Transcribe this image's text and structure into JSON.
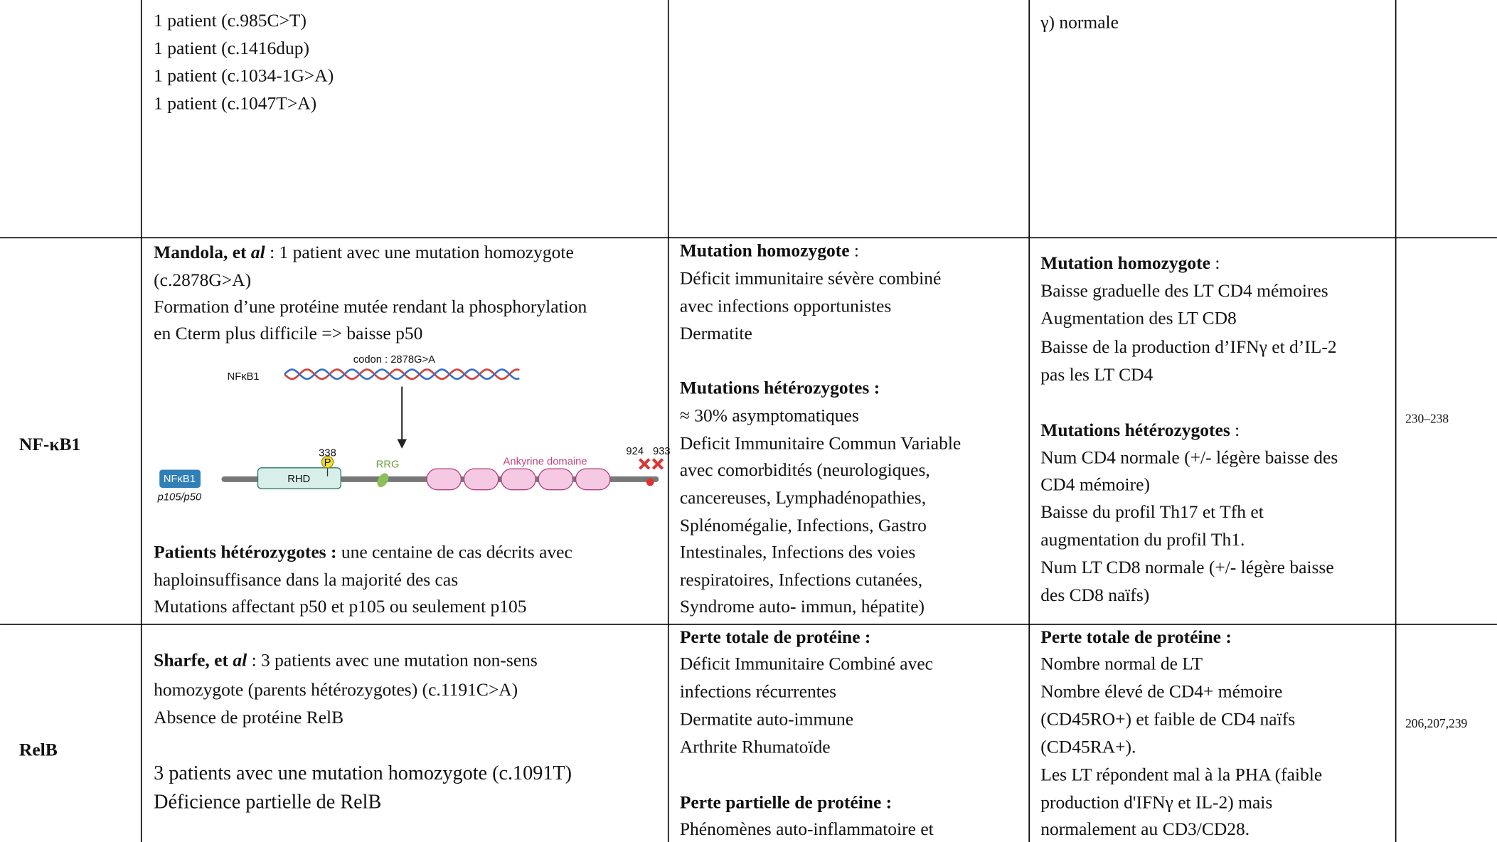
{
  "table": {
    "rows": [
      {
        "c1": [
          {
            "text": "1 patient (c.985C>T)"
          },
          {
            "text": "1 patient (c.1416dup)"
          },
          {
            "text": "1 patient (c.1034-1G>A)"
          },
          {
            "text": "1 patient (c.1047T>A)"
          }
        ],
        "c3": [
          {
            "text": "γ) normale"
          }
        ]
      },
      {
        "gene": "NF-κB1",
        "c1": [
          {
            "bold": "Mandola, et ",
            "bold_italic": "al",
            "text": " : 1 patient avec une mutation homozygote"
          },
          {
            "text": "(c.2878G>A)"
          },
          {
            "text": "Formation d’une protéine mutée rendant la phosphorylation"
          },
          {
            "text": "en Cterm plus difficile => baisse p50"
          },
          {
            "bold": "Patients hétérozygotes :",
            "text": " une centaine de cas décrits avec"
          },
          {
            "text": "haploinsuffisance dans la majorité des cas"
          },
          {
            "text": "Mutations affectant p50 et p105 ou seulement p105"
          }
        ],
        "c2": [
          {
            "bold": "Mutation homozygote",
            "text": " :"
          },
          {
            "text": "Déficit immunitaire sévère combiné"
          },
          {
            "text": "avec infections opportunistes"
          },
          {
            "text": "Dermatite"
          },
          {
            "bold": "Mutations hétérozygotes :"
          },
          {
            "text": "≈ 30% asymptomatiques"
          },
          {
            "text": "Deficit Immunitaire Commun Variable"
          },
          {
            "text": "avec comorbidités (neurologiques,"
          },
          {
            "text": "cancereuses, Lymphadénopathies,"
          },
          {
            "text": "Splénomégalie, Infections, Gastro"
          },
          {
            "text": "Intestinales, Infections des voies"
          },
          {
            "text": "respiratoires, Infections cutanées,"
          },
          {
            "text": "Syndrome auto- immun, hépatite)"
          }
        ],
        "c3": [
          {
            "bold": "Mutation homozygote",
            "text": " :"
          },
          {
            "text": "Baisse graduelle des LT CD4 mémoires"
          },
          {
            "text": "Augmentation des LT CD8"
          },
          {
            "text": "Baisse de la production d’IFNγ et d’IL-2"
          },
          {
            "text": "pas les LT CD4"
          },
          {
            "bold": "Mutations hétérozygotes",
            "text": " :"
          },
          {
            "text": "Num CD4 normale (+/- légère baisse des"
          },
          {
            "text": "CD4 mémoire)"
          },
          {
            "text": "Baisse du profil Th17 et Tfh et"
          },
          {
            "text": "augmentation du profil Th1."
          },
          {
            "text": "Num LT CD8 normale (+/- légère baisse"
          },
          {
            "text": "des CD8 naïfs)"
          }
        ],
        "refs": "230–238"
      },
      {
        "gene": "RelB",
        "c1": [
          {
            "bold": "Sharfe, et ",
            "bold_italic": "al",
            "text": " : 3 patients avec une mutation non-sens"
          },
          {
            "text": "homozygote (parents hétérozygotes) (c.1191C>A)"
          },
          {
            "text": "Absence de protéine RelB"
          },
          {
            "text": "3 patients avec une mutation homozygote (c.1091T)"
          },
          {
            "text": "Déficience partielle de RelB"
          }
        ],
        "c2": [
          {
            "bold": "Perte totale de protéine :"
          },
          {
            "text": "Déficit Immunitaire Combiné avec"
          },
          {
            "text": "infections récurrentes"
          },
          {
            "text": "Dermatite auto-immune"
          },
          {
            "text": "Arthrite Rhumatoïde"
          },
          {
            "bold": "Perte partielle de protéine :"
          },
          {
            "text": "Phénomènes auto-inflammatoire et"
          }
        ],
        "c3": [
          {
            "bold": "Perte totale de protéine :"
          },
          {
            "text": "Nombre normal de LT"
          },
          {
            "text": "Nombre élevé de CD4+ mémoire"
          },
          {
            "text": "(CD45RO+) et faible de CD4 naïfs"
          },
          {
            "text": "(CD45RA+)."
          },
          {
            "text": "Les LT répondent mal à la PHA (faible"
          },
          {
            "text": "production d'IFNγ et IL-2) mais"
          },
          {
            "text": "normalement au CD3/CD28."
          }
        ],
        "refs": "206,207,239"
      }
    ]
  },
  "diagram": {
    "codon": "codon : 2878G>A",
    "gene": "NFκB1",
    "domains": [
      "RHD",
      "RRG",
      "Ankyrine domaine"
    ],
    "protein": "NFκB1",
    "isoform": "p105/p50",
    "sites": [
      "338",
      "924",
      "933"
    ],
    "phospho": "P"
  }
}
